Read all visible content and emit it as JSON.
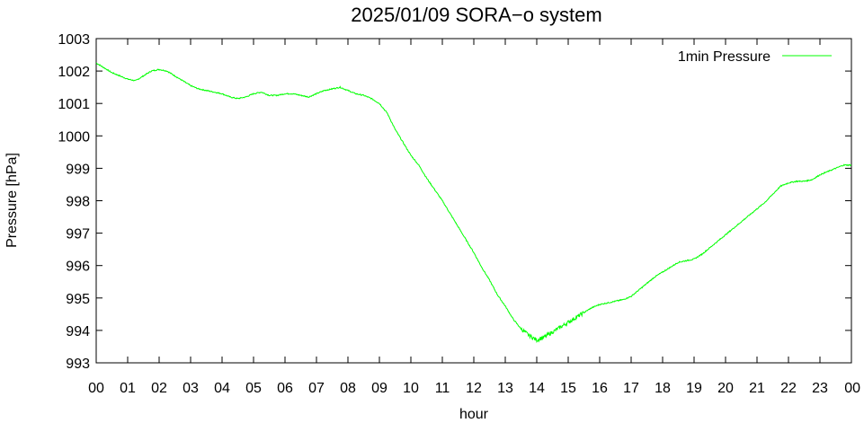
{
  "chart_data": {
    "type": "line",
    "title": "2025/01/09 SORA−o system",
    "xlabel": "hour",
    "ylabel": "Pressure [hPa]",
    "xlim": [
      0,
      24
    ],
    "ylim": [
      993,
      1003
    ],
    "x_ticks": [
      "00",
      "01",
      "02",
      "03",
      "04",
      "05",
      "06",
      "07",
      "08",
      "09",
      "10",
      "11",
      "12",
      "13",
      "14",
      "15",
      "16",
      "17",
      "18",
      "19",
      "20",
      "21",
      "22",
      "23",
      "00"
    ],
    "y_ticks": [
      "993",
      "994",
      "995",
      "996",
      "997",
      "998",
      "999",
      "1000",
      "1001",
      "1002",
      "1003"
    ],
    "legend": {
      "position": "top-right"
    },
    "grid": false,
    "series": [
      {
        "name": "1min Pressure",
        "color": "#00ff00",
        "x": [
          0.0,
          0.25,
          0.5,
          0.75,
          1.0,
          1.25,
          1.5,
          1.75,
          2.0,
          2.25,
          2.5,
          2.75,
          3.0,
          3.25,
          3.5,
          3.75,
          4.0,
          4.25,
          4.5,
          4.75,
          5.0,
          5.25,
          5.5,
          5.75,
          6.0,
          6.25,
          6.5,
          6.75,
          7.0,
          7.25,
          7.5,
          7.75,
          8.0,
          8.25,
          8.5,
          8.75,
          9.0,
          9.25,
          9.5,
          9.75,
          10.0,
          10.25,
          10.5,
          10.75,
          11.0,
          11.25,
          11.5,
          11.75,
          12.0,
          12.25,
          12.5,
          12.75,
          13.0,
          13.25,
          13.5,
          13.75,
          14.0,
          14.25,
          14.5,
          14.75,
          15.0,
          15.25,
          15.5,
          15.75,
          16.0,
          16.25,
          16.5,
          16.75,
          17.0,
          17.25,
          17.5,
          17.75,
          18.0,
          18.25,
          18.5,
          18.75,
          19.0,
          19.25,
          19.5,
          19.75,
          20.0,
          20.25,
          20.5,
          20.75,
          21.0,
          21.25,
          21.5,
          21.75,
          22.0,
          22.25,
          22.5,
          22.75,
          23.0,
          23.25,
          23.5,
          23.75,
          24.0
        ],
        "values": [
          1002.25,
          1002.1,
          1001.95,
          1001.85,
          1001.75,
          1001.7,
          1001.85,
          1002.0,
          1002.05,
          1002.0,
          1001.85,
          1001.7,
          1001.55,
          1001.45,
          1001.4,
          1001.35,
          1001.3,
          1001.2,
          1001.15,
          1001.2,
          1001.3,
          1001.35,
          1001.25,
          1001.25,
          1001.3,
          1001.3,
          1001.25,
          1001.2,
          1001.3,
          1001.4,
          1001.45,
          1001.5,
          1001.4,
          1001.3,
          1001.25,
          1001.15,
          1001.0,
          1000.7,
          1000.2,
          999.8,
          999.4,
          999.1,
          998.7,
          998.35,
          998.0,
          997.6,
          997.2,
          996.8,
          996.4,
          995.95,
          995.55,
          995.1,
          994.75,
          994.35,
          994.05,
          993.85,
          993.7,
          993.8,
          993.95,
          994.1,
          994.25,
          994.4,
          994.55,
          994.7,
          994.8,
          994.85,
          994.9,
          994.95,
          995.05,
          995.25,
          995.45,
          995.65,
          995.8,
          995.95,
          996.1,
          996.15,
          996.2,
          996.35,
          996.55,
          996.75,
          996.95,
          997.15,
          997.35,
          997.55,
          997.75,
          997.95,
          998.2,
          998.45,
          998.55,
          998.6,
          998.6,
          998.65,
          998.8,
          998.9,
          999.0,
          999.1,
          999.1
        ]
      }
    ]
  }
}
